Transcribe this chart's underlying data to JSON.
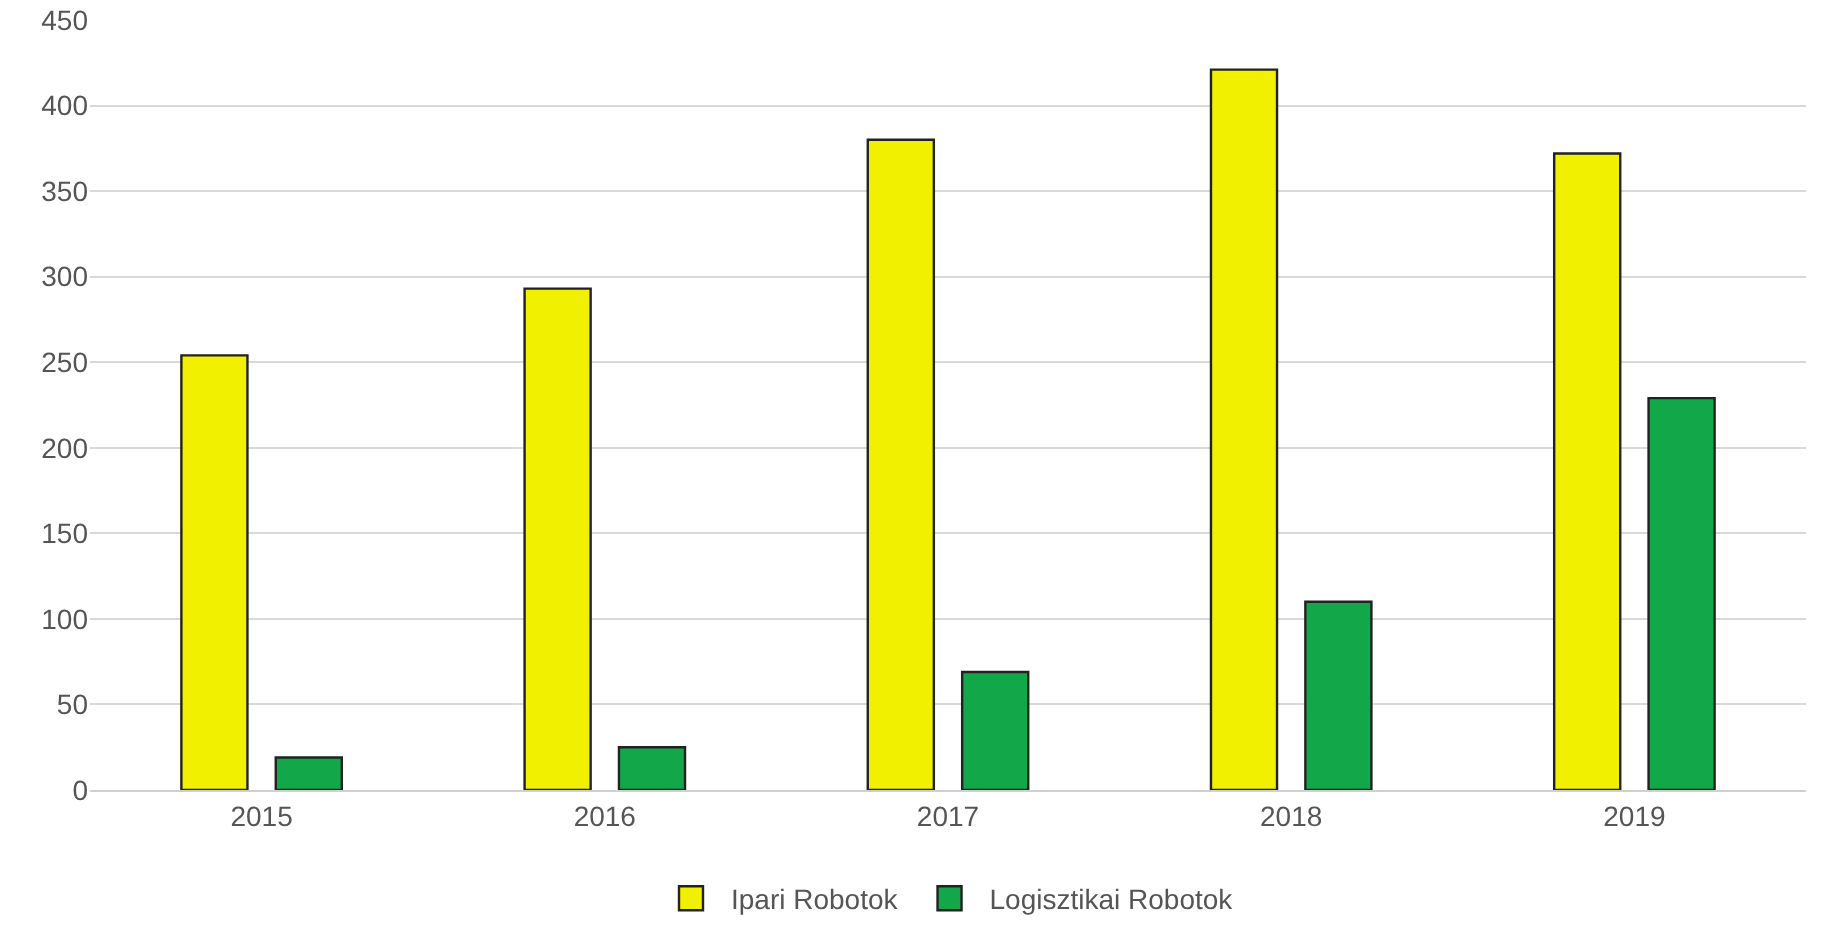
{
  "chart_data": {
    "type": "bar",
    "categories": [
      "2015",
      "2016",
      "2017",
      "2018",
      "2019"
    ],
    "series": [
      {
        "name": "Ipari Robotok",
        "color": "#f0f000",
        "values": [
          254,
          293,
          380,
          421,
          372
        ]
      },
      {
        "name": "Logisztikai Robotok",
        "color": "#12a84a",
        "values": [
          19,
          25,
          69,
          110,
          229
        ]
      }
    ],
    "ylim": [
      0,
      450
    ],
    "yticks": [
      0,
      50,
      100,
      150,
      200,
      250,
      300,
      350,
      400,
      450
    ],
    "grid": "y",
    "legend": "bottom"
  }
}
